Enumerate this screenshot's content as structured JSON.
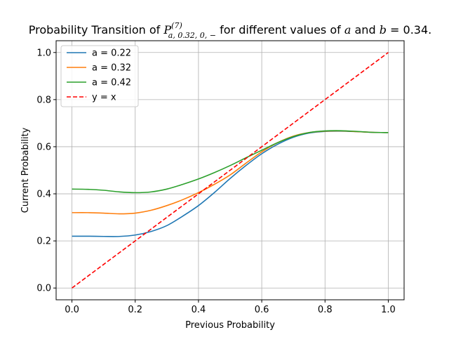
{
  "chart_data": {
    "type": "line",
    "title": {
      "prefix": "Probability Transition of ",
      "symbol": "P",
      "superscript": "(7)",
      "subscript": "a, 0.32, 0, −",
      "middle": " for different values of ",
      "var_a": "a",
      "and_text": " and ",
      "var_b": "b",
      "equals_text": " = 0.34."
    },
    "xlabel": "Previous Probability",
    "ylabel": "Current Probability",
    "xlim": [
      -0.05,
      1.05
    ],
    "ylim": [
      -0.05,
      1.05
    ],
    "xticks": [
      0.0,
      0.2,
      0.4,
      0.6,
      0.8,
      1.0
    ],
    "yticks": [
      0.0,
      0.2,
      0.4,
      0.6,
      0.8,
      1.0
    ],
    "xtick_labels": [
      "0.0",
      "0.2",
      "0.4",
      "0.6",
      "0.8",
      "1.0"
    ],
    "ytick_labels": [
      "0.0",
      "0.2",
      "0.4",
      "0.6",
      "0.8",
      "1.0"
    ],
    "grid": true,
    "legend_position": "top-left",
    "x": [
      0.0,
      0.05,
      0.1,
      0.15,
      0.2,
      0.25,
      0.3,
      0.35,
      0.4,
      0.45,
      0.5,
      0.55,
      0.6,
      0.65,
      0.7,
      0.75,
      0.8,
      0.85,
      0.9,
      0.95,
      1.0
    ],
    "series": [
      {
        "name": "a = 0.22",
        "color": "#1f77b4",
        "dash": "solid",
        "values": [
          0.22,
          0.22,
          0.219,
          0.219,
          0.225,
          0.24,
          0.265,
          0.305,
          0.35,
          0.405,
          0.465,
          0.52,
          0.57,
          0.61,
          0.64,
          0.658,
          0.665,
          0.666,
          0.664,
          0.661,
          0.66
        ]
      },
      {
        "name": "a = 0.32",
        "color": "#ff7f0e",
        "dash": "solid",
        "values": [
          0.32,
          0.32,
          0.318,
          0.315,
          0.318,
          0.33,
          0.35,
          0.375,
          0.405,
          0.44,
          0.48,
          0.53,
          0.578,
          0.617,
          0.645,
          0.66,
          0.666,
          0.667,
          0.664,
          0.661,
          0.66
        ]
      },
      {
        "name": "a = 0.42",
        "color": "#2ca02c",
        "dash": "solid",
        "values": [
          0.42,
          0.419,
          0.415,
          0.408,
          0.405,
          0.408,
          0.42,
          0.44,
          0.463,
          0.49,
          0.52,
          0.553,
          0.585,
          0.617,
          0.643,
          0.66,
          0.667,
          0.668,
          0.665,
          0.661,
          0.66
        ]
      },
      {
        "name": "y = x",
        "color": "#ff0000",
        "dash": "dashed",
        "values": [
          0.0,
          0.05,
          0.1,
          0.15,
          0.2,
          0.25,
          0.3,
          0.35,
          0.4,
          0.45,
          0.5,
          0.55,
          0.6,
          0.65,
          0.7,
          0.75,
          0.8,
          0.85,
          0.9,
          0.95,
          1.0
        ]
      }
    ]
  }
}
